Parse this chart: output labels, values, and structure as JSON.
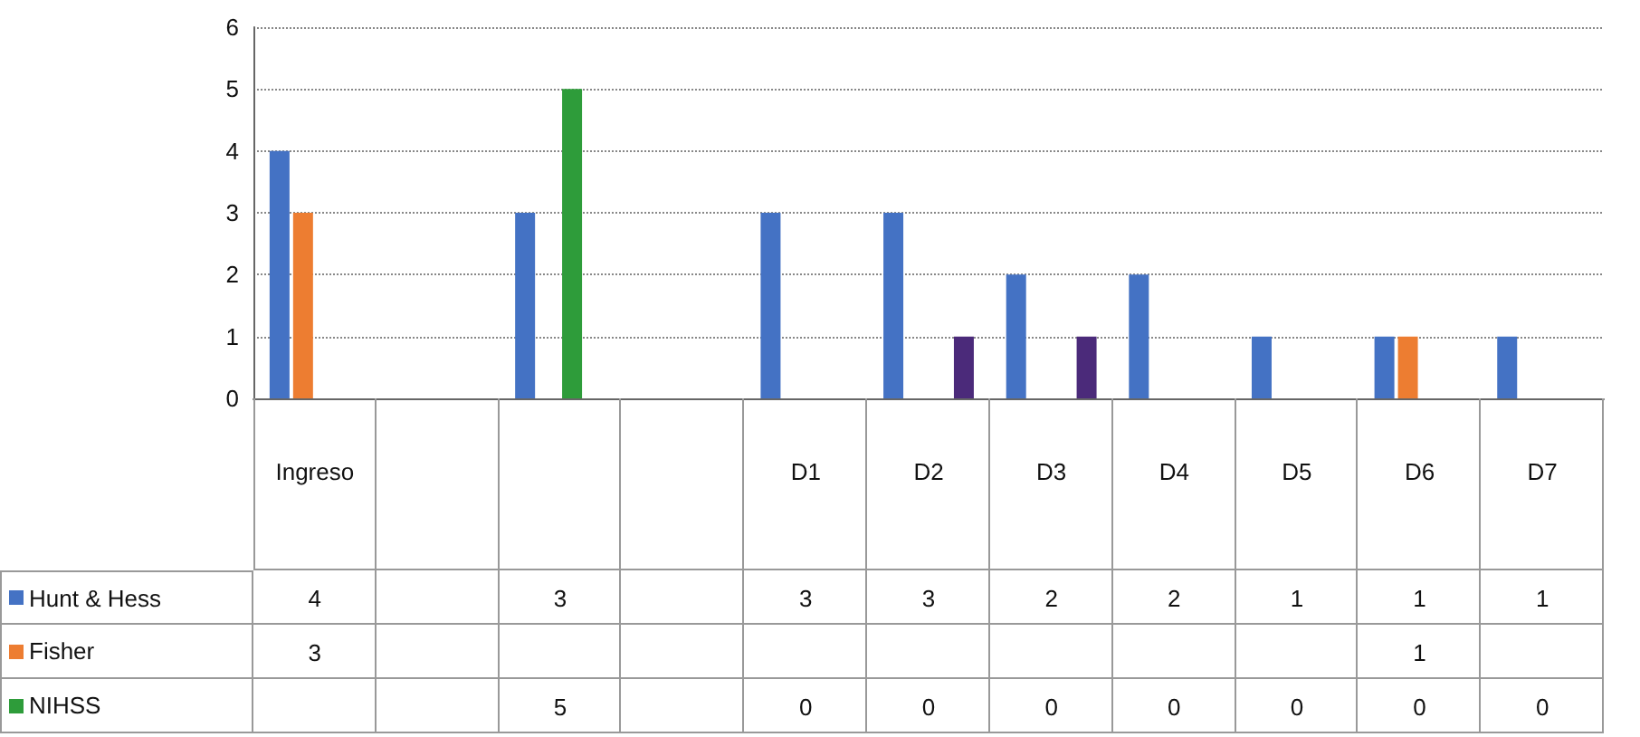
{
  "chart_data": {
    "type": "bar",
    "categories": [
      "Ingreso",
      null,
      null,
      null,
      "D1",
      "D2",
      "D3",
      "D4",
      "D5",
      "D6",
      "D7"
    ],
    "series": [
      {
        "name": "Hunt & Hess",
        "color": "#4472c4",
        "values": [
          4,
          null,
          3,
          null,
          3,
          3,
          2,
          2,
          1,
          1,
          1
        ],
        "value_labels": [
          "4",
          null,
          "3",
          null,
          "3",
          "3",
          "2",
          "2",
          "1",
          "1",
          "1"
        ]
      },
      {
        "name": "Fisher",
        "color": "#ed7d31",
        "values": [
          3,
          null,
          null,
          null,
          null,
          null,
          null,
          null,
          null,
          1,
          null
        ],
        "value_labels": [
          "3",
          null,
          null,
          null,
          null,
          null,
          null,
          null,
          null,
          "1",
          null
        ]
      },
      {
        "name": "NIHSS",
        "color": "#2e9c3a",
        "values": [
          null,
          null,
          5,
          null,
          0,
          0,
          0,
          0,
          0,
          0,
          0
        ],
        "value_labels": [
          null,
          null,
          "5",
          null,
          "0",
          "0",
          "0",
          "0",
          "0",
          "0",
          "0"
        ]
      },
      {
        "color": "#4b2a7a",
        "values": [
          null,
          null,
          null,
          null,
          null,
          1,
          1,
          null,
          null,
          null,
          null
        ]
      }
    ],
    "ylim": [
      0,
      6
    ],
    "yticks": [
      0,
      1,
      2,
      3,
      4,
      5,
      6
    ],
    "grid": "y",
    "legend": "bottom left"
  }
}
